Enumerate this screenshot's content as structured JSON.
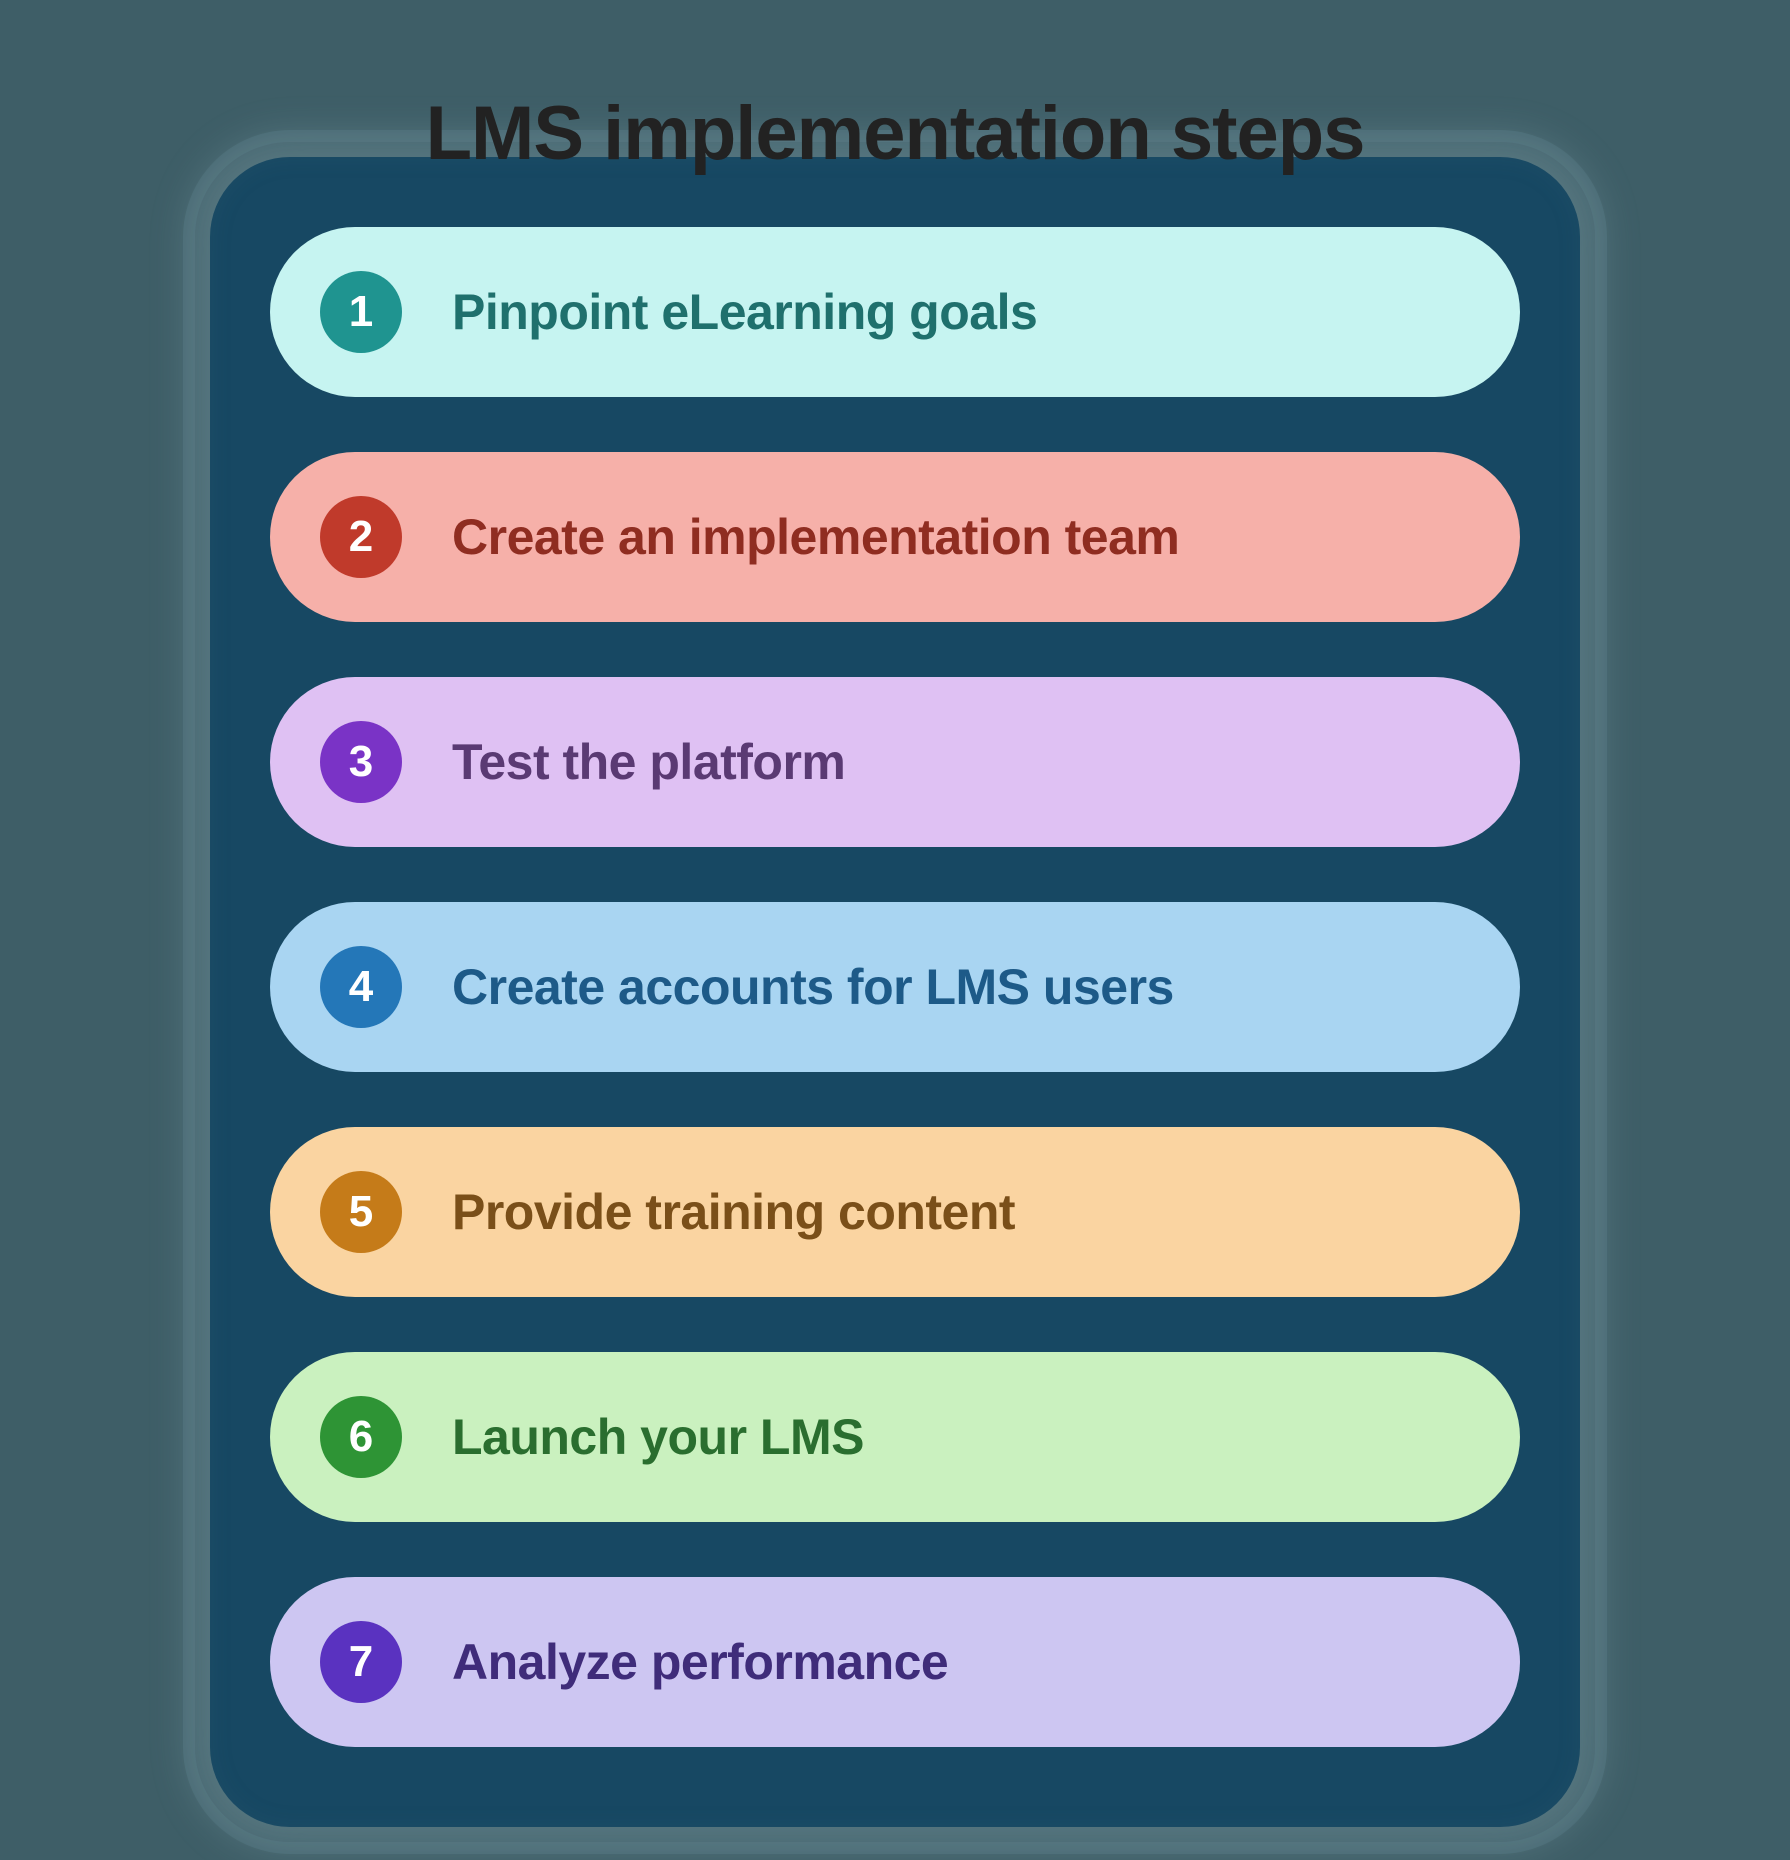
{
  "infographic": {
    "type": "step-list",
    "title": "LMS implementation steps",
    "title_color": "#222222",
    "title_fontsize": 76,
    "background_color": "#3e5e67",
    "panel_color": "#174863",
    "panel_radius": 80,
    "step_height": 170,
    "step_radius": 85,
    "step_gap": 55,
    "badge_size": 82,
    "badge_fontsize": 44,
    "badge_text_color": "#ffffff",
    "label_fontsize": 50,
    "steps": [
      {
        "num": "1",
        "label": "Pinpoint eLearning goals",
        "pill_color": "#c6f4f1",
        "badge_color": "#1f9490",
        "text_color": "#1f706d"
      },
      {
        "num": "2",
        "label": "Create an implementation team",
        "pill_color": "#f6b0a9",
        "badge_color": "#c03a2b",
        "text_color": "#8f2d21"
      },
      {
        "num": "3",
        "label": "Test the platform",
        "pill_color": "#dfc1f3",
        "badge_color": "#7a33c6",
        "text_color": "#5a3a73"
      },
      {
        "num": "4",
        "label": "Create accounts for LMS users",
        "pill_color": "#a9d5f2",
        "badge_color": "#2477b8",
        "text_color": "#1d5a88"
      },
      {
        "num": "5",
        "label": "Provide training content",
        "pill_color": "#fad4a1",
        "badge_color": "#c57b19",
        "text_color": "#7a4f19"
      },
      {
        "num": "6",
        "label": "Launch your LMS",
        "pill_color": "#caf1bf",
        "badge_color": "#2e9435",
        "text_color": "#2a6e2f"
      },
      {
        "num": "7",
        "label": "Analyze performance",
        "pill_color": "#cdc6f2",
        "badge_color": "#5a32c0",
        "text_color": "#3f2c7a"
      }
    ]
  }
}
